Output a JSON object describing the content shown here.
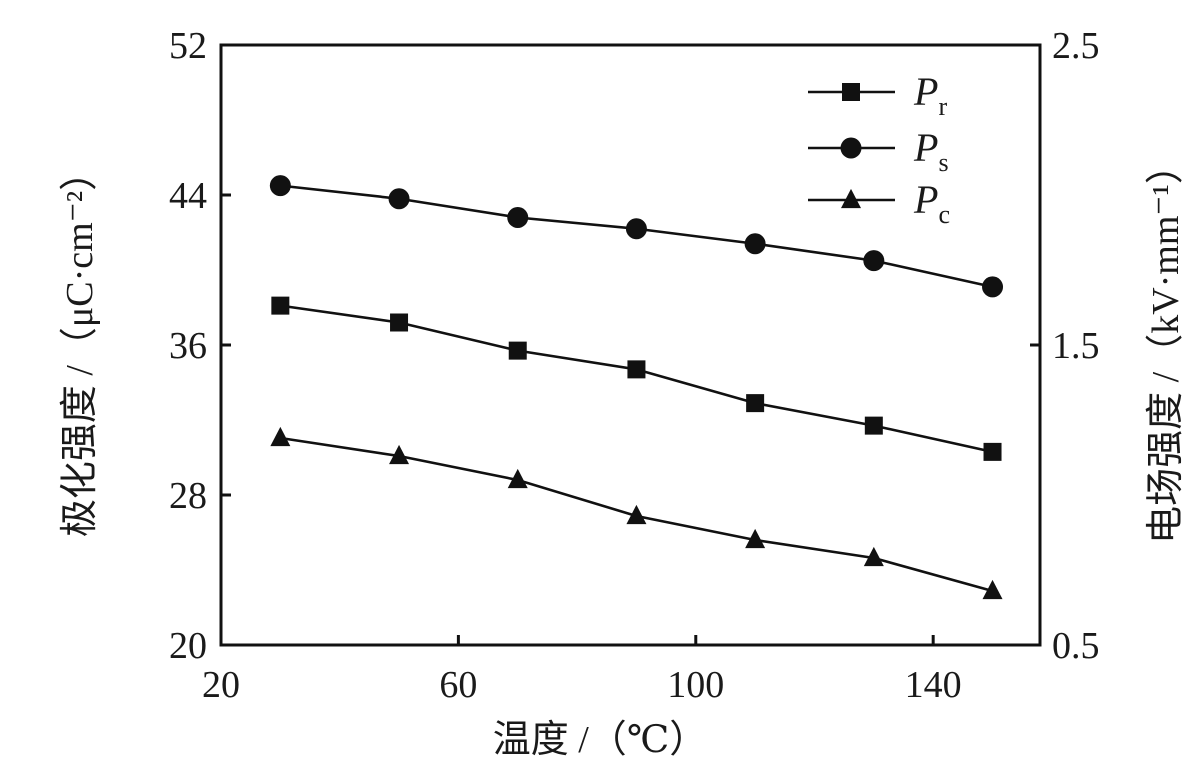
{
  "chart_data": {
    "type": "line",
    "x": [
      30,
      50,
      70,
      90,
      110,
      130,
      150
    ],
    "xlabel": "温度 /（℃）",
    "xlim": [
      20,
      158
    ],
    "xticks": [
      20,
      60,
      100,
      140
    ],
    "ylabel": "极化强度 /（μC·cm⁻²）",
    "ylim": [
      20,
      52
    ],
    "yticks": [
      20,
      28,
      36,
      44,
      52
    ],
    "y2label": "电场强度 /（kV·mm⁻¹）",
    "y2lim": [
      0.5,
      2.5
    ],
    "y2ticks": [
      0.5,
      1.5,
      2.5
    ],
    "grid": false,
    "legend_position": "top-right",
    "color": "#111111",
    "series": [
      {
        "label_main": "P",
        "label_sub": "r",
        "marker": "square",
        "axis": "left",
        "values": [
          38.1,
          37.2,
          35.7,
          34.7,
          32.9,
          31.7,
          30.3
        ]
      },
      {
        "label_main": "P",
        "label_sub": "s",
        "marker": "circle",
        "axis": "left",
        "values": [
          44.5,
          43.8,
          42.8,
          42.2,
          41.4,
          40.5,
          39.1
        ]
      },
      {
        "label_main": "P",
        "label_sub": "c",
        "marker": "triangle",
        "axis": "right",
        "values": [
          1.19,
          1.13,
          1.05,
          0.93,
          0.85,
          0.79,
          0.68
        ]
      }
    ]
  }
}
